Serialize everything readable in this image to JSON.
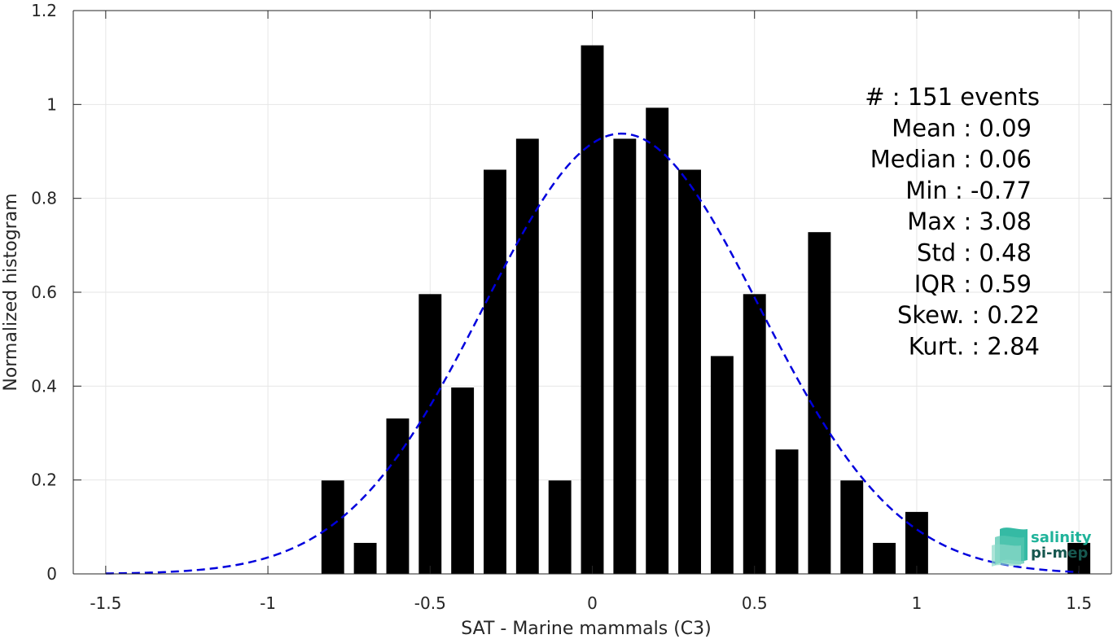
{
  "chart_data": {
    "type": "bar",
    "xlabel": "SAT - Marine mammals (C3)",
    "ylabel": "Normalized histogram",
    "xlim": [
      -1.6,
      1.6
    ],
    "ylim": [
      0,
      1.2
    ],
    "xticks": [
      -1.5,
      -1,
      -0.5,
      0,
      0.5,
      1,
      1.5
    ],
    "xtick_labels": [
      "-1.5",
      "-1",
      "-0.5",
      "0",
      "0.5",
      "1",
      "1.5"
    ],
    "yticks": [
      0,
      0.2,
      0.4,
      0.6,
      0.8,
      1,
      1.2
    ],
    "ytick_labels": [
      "0",
      "0.2",
      "0.4",
      "0.6",
      "0.8",
      "1",
      "1.2"
    ],
    "grid": true,
    "bar_width": 0.07,
    "bars": {
      "x": [
        -0.8,
        -0.7,
        -0.6,
        -0.5,
        -0.4,
        -0.3,
        -0.2,
        -0.1,
        0.0,
        0.1,
        0.2,
        0.3,
        0.4,
        0.5,
        0.6,
        0.7,
        0.8,
        0.9,
        1.0,
        1.5
      ],
      "values": [
        0.199,
        0.066,
        0.331,
        0.596,
        0.397,
        0.861,
        0.927,
        0.199,
        1.126,
        0.927,
        0.993,
        0.861,
        0.464,
        0.596,
        0.265,
        0.728,
        0.199,
        0.066,
        0.132,
        0.066
      ],
      "color": "#000000"
    },
    "fit_curve": {
      "style": "dashed",
      "color": "#0000dd",
      "mean": 0.09,
      "std": 0.425,
      "peak": 0.938,
      "x_range": [
        -1.5,
        1.5
      ]
    },
    "stats": [
      {
        "label": "#  : 151 events",
        "align": "right"
      },
      {
        "label": "Mean : 0.09",
        "align": "right"
      },
      {
        "label": "Median : 0.06",
        "align": "right"
      },
      {
        "label": "Min : -0.77",
        "align": "right"
      },
      {
        "label": "Max : 3.08",
        "align": "right"
      },
      {
        "label": "Std : 0.48",
        "align": "right"
      },
      {
        "label": "IQR : 0.59",
        "align": "right"
      },
      {
        "label": "Skew. : 0.22",
        "align": "right"
      },
      {
        "label": "Kurt. : 2.84",
        "align": "right"
      }
    ]
  },
  "logo": {
    "line1": "salinity",
    "line2": "pi-mep",
    "color1": "#1fb39a",
    "color2": "#16574f"
  }
}
